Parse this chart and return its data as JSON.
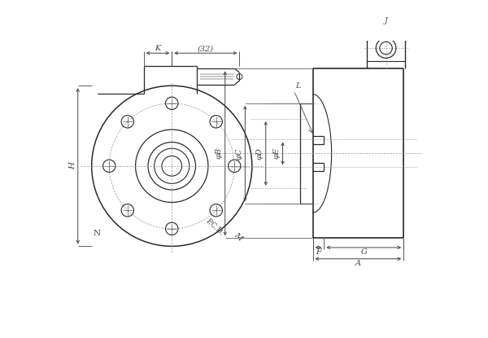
{
  "bg_color": "#ffffff",
  "line_color": "#2a2a2a",
  "dim_color": "#444444",
  "center_color": "#999999",
  "labels": {
    "K": "K",
    "32": "(32)",
    "H": "H",
    "N": "N",
    "PCD": "P.C.D.",
    "M": "M",
    "phiB": "φB",
    "phiC": "φC",
    "phiD": "φD",
    "phiE": "φE",
    "F": "F",
    "G": "G",
    "L": "L",
    "J": "J",
    "A": "A"
  }
}
